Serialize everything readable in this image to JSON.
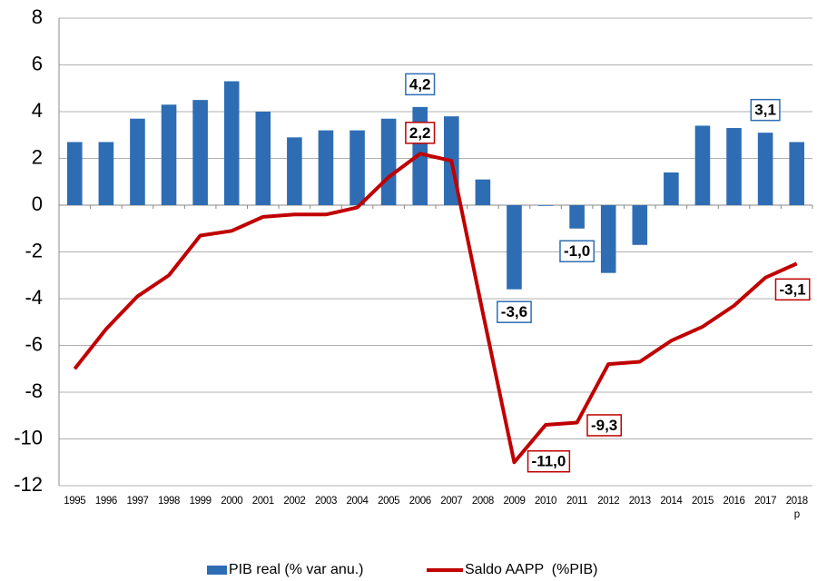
{
  "chart_data": {
    "type": "bar+line",
    "categories": [
      "1995",
      "1996",
      "1997",
      "1998",
      "1999",
      "2000",
      "2001",
      "2002",
      "2003",
      "2004",
      "2005",
      "2006",
      "2007",
      "2008",
      "2009",
      "2010",
      "2011",
      "2012",
      "2013",
      "2014",
      "2015",
      "2016",
      "2017",
      "2018\np"
    ],
    "series": [
      {
        "name": "PIB real (% var anu.)",
        "type": "bar",
        "color": "#2e6db4",
        "values": [
          2.7,
          2.7,
          3.7,
          4.3,
          4.5,
          5.3,
          4.0,
          2.9,
          3.2,
          3.2,
          3.7,
          4.2,
          3.8,
          1.1,
          -3.6,
          0.0,
          -1.0,
          -2.9,
          -1.7,
          1.4,
          3.4,
          3.3,
          3.1,
          2.7
        ],
        "value_labels": [
          null,
          null,
          null,
          null,
          null,
          null,
          null,
          null,
          null,
          null,
          null,
          "4,2",
          null,
          null,
          "-3,6",
          null,
          "-1,0",
          null,
          null,
          null,
          null,
          null,
          "3,1",
          null
        ]
      },
      {
        "name": "Saldo AAPP  (%PIB)",
        "type": "line",
        "color": "#c00000",
        "values": [
          -7.0,
          -5.3,
          -3.9,
          -3.0,
          -1.3,
          -1.1,
          -0.5,
          -0.4,
          -0.4,
          -0.1,
          1.2,
          2.2,
          1.9,
          -4.6,
          -11.0,
          -9.4,
          -9.3,
          -6.8,
          -6.7,
          -5.8,
          -5.2,
          -4.3,
          -3.1,
          -2.5
        ],
        "value_labels": [
          null,
          null,
          null,
          null,
          null,
          null,
          null,
          null,
          null,
          null,
          null,
          "2,2",
          null,
          null,
          "-11,0",
          null,
          "-9,3",
          null,
          null,
          null,
          null,
          null,
          "-3,1",
          null
        ]
      }
    ],
    "ylim": [
      -12,
      8
    ],
    "yticks": [
      -12,
      -10,
      -8,
      -6,
      -4,
      -2,
      0,
      2,
      4,
      6,
      8
    ],
    "grid": true
  }
}
